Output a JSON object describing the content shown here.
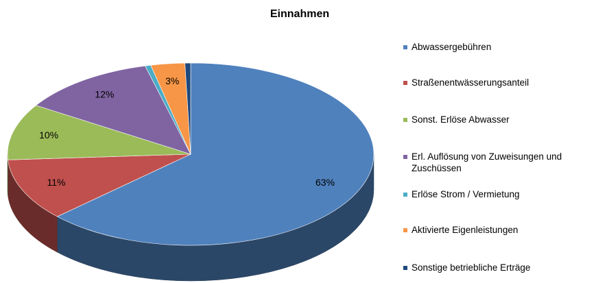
{
  "chart_data": {
    "type": "pie",
    "title": "Einnahmen",
    "categories": [
      "Abwassergebühren",
      "Straßenentwässerungsanteil",
      "Sonst. Erlöse Abwasser",
      "Erl. Auflösung von Zuweisungen und Zuschüssen",
      "Erlöse Strom / Vermietung",
      "Aktivierte Eigenleistungen",
      "Sonstige betriebliche Erträge"
    ],
    "values": [
      63,
      11,
      10,
      12,
      0.5,
      3,
      0.5
    ],
    "value_labels": [
      "63%",
      "11%",
      "10%",
      "12%",
      null,
      "3%",
      null
    ],
    "colors": [
      "#4f81bd",
      "#c0504d",
      "#9bbb59",
      "#8064a2",
      "#4bacc6",
      "#f79646",
      "#1f497d"
    ],
    "legend": "right"
  }
}
